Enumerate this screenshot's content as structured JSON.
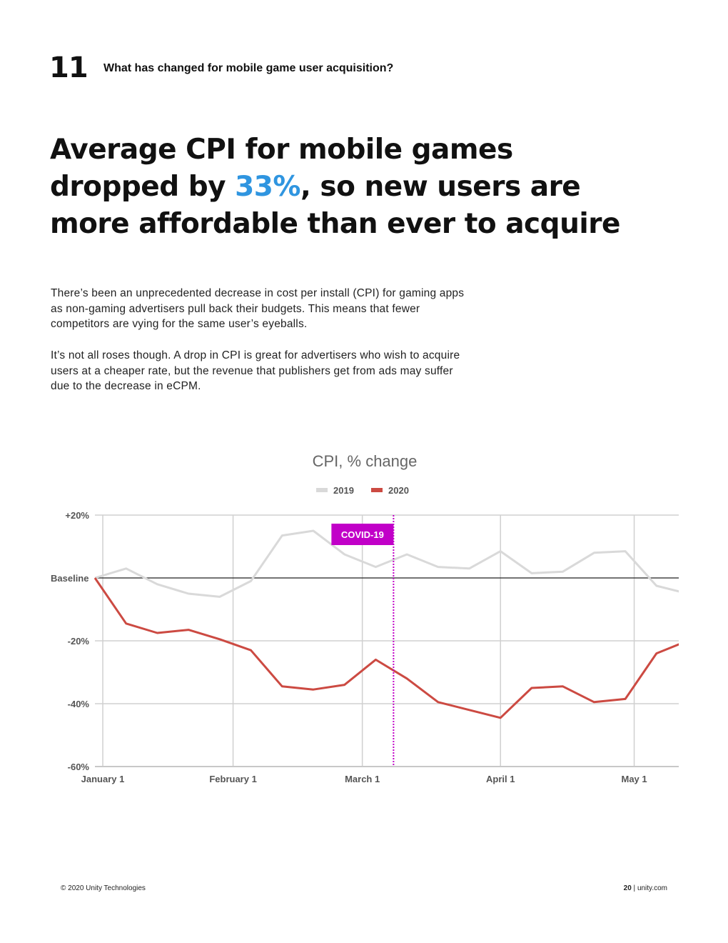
{
  "header": {
    "section_number": "11",
    "section_title": "What has changed for mobile game user acquisition?"
  },
  "headline": {
    "line1": "Average CPI for mobile games",
    "line2_before": "dropped by ",
    "line2_highlight": "33%",
    "line2_after": ", so new users are",
    "line3": "more affordable than ever to acquire",
    "highlight_color": "#2f95e0"
  },
  "body": {
    "paragraph1": "There’s been an unprecedented decrease in cost per install (CPI) for gaming apps as non-gaming advertisers pull back their budgets. This means that fewer competitors are vying for the same user’s eyeballs.",
    "paragraph2": "It’s not all roses though. A drop in CPI is great for advertisers who wish to acquire users at a cheaper rate, but the revenue that publishers get from ads may suffer due to the decrease in eCPM."
  },
  "chart_data": {
    "type": "line",
    "title": "CPI, % change",
    "xlabel": "",
    "ylabel": "",
    "ylim": [
      -60,
      20
    ],
    "y_ticks": [
      {
        "value": 20,
        "label": "+20%"
      },
      {
        "value": 0,
        "label": "Baseline"
      },
      {
        "value": -20,
        "label": "-20%"
      },
      {
        "value": -40,
        "label": "-40%"
      },
      {
        "value": -60,
        "label": "-60%"
      }
    ],
    "x_ticks": [
      {
        "day": 0,
        "label": "January 1"
      },
      {
        "day": 31,
        "label": "February 1"
      },
      {
        "day": 60,
        "label": "March 1"
      },
      {
        "day": 91,
        "label": "April 1"
      },
      {
        "day": 121,
        "label": "May 1"
      }
    ],
    "x_range": [
      0,
      131
    ],
    "grid": true,
    "legend": "top-center",
    "x": [
      0,
      7,
      14,
      21,
      28,
      35,
      42,
      49,
      56,
      63,
      70,
      77,
      84,
      91,
      98,
      105,
      112,
      119,
      126,
      133
    ],
    "series": [
      {
        "name": "2019",
        "color": "#d9d9d9",
        "values": [
          0,
          3,
          -2,
          -5,
          -6,
          -1,
          13.5,
          15,
          7.5,
          3.5,
          7.5,
          3.5,
          3,
          8.5,
          1.5,
          2,
          8,
          8.5,
          -2.5,
          -5
        ]
      },
      {
        "name": "2020",
        "color": "#cc4a42",
        "values": [
          0,
          -14.5,
          -17.5,
          -16.5,
          -19.5,
          -23,
          -34.5,
          -35.5,
          -34,
          -26,
          -32,
          -39.5,
          -42,
          -44.5,
          -35,
          -34.5,
          -39.5,
          -38.5,
          -24,
          -20
        ]
      }
    ],
    "annotation": {
      "label": "COVID-19",
      "day": 67,
      "color": "#c100c8"
    }
  },
  "footer": {
    "copyright": "© 2020 Unity Technologies",
    "page_number": "20",
    "separator": "|",
    "site": "unity.com"
  }
}
